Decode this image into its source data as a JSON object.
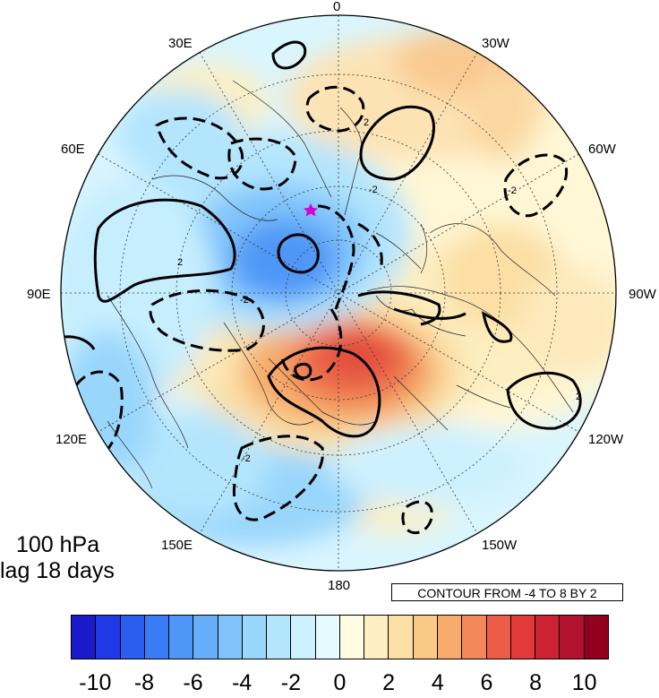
{
  "title": {
    "line1": "100 hPa",
    "line2": "lag 18 days"
  },
  "contour_note": "CONTOUR FROM -4 TO 8 BY 2",
  "contour_spec": {
    "min": -4,
    "max": 8,
    "step": 2
  },
  "projection": "north-polar-stereographic",
  "longitude_labels": [
    {
      "text": "0",
      "lon": 0
    },
    {
      "text": "30W",
      "lon": -30
    },
    {
      "text": "60W",
      "lon": -60
    },
    {
      "text": "90W",
      "lon": -90
    },
    {
      "text": "120W",
      "lon": -120
    },
    {
      "text": "150W",
      "lon": -150
    },
    {
      "text": "180",
      "lon": 180
    },
    {
      "text": "150E",
      "lon": 150
    },
    {
      "text": "120E",
      "lon": 120
    },
    {
      "text": "90E",
      "lon": 90
    },
    {
      "text": "60E",
      "lon": 60
    },
    {
      "text": "30E",
      "lon": 30
    }
  ],
  "contour_labels": [
    "-2",
    "-2",
    "-2",
    "-2",
    "2",
    "2",
    "2"
  ],
  "marker": {
    "color": "#d400d4",
    "shape": "star"
  },
  "colorbar": {
    "colors": [
      "#1a1acc",
      "#1f3ae6",
      "#2b5ef0",
      "#3a7cf5",
      "#4f97f7",
      "#66aefa",
      "#80c4fb",
      "#99d6fc",
      "#b3e5fd",
      "#cdf1fe",
      "#e6fbff",
      "#fffbe0",
      "#fdefc2",
      "#fbdfa4",
      "#f9c985",
      "#f6ab6a",
      "#f2875a",
      "#ec5d48",
      "#e23a3a",
      "#cc2233",
      "#b3122e",
      "#93001f"
    ],
    "tick_labels": [
      "-10",
      "-8",
      "-6",
      "-4",
      "-2",
      "0",
      "2",
      "4",
      "6",
      "8",
      "10"
    ]
  },
  "colors": {
    "negative_core": "#4f97f7",
    "negative_mid": "#99d6fc",
    "negative_light": "#cdf1fe",
    "positive_light": "#fdefc2",
    "positive_mid": "#f6ab6a",
    "positive_core": "#e25a40",
    "background_field": "#e6fbff"
  }
}
